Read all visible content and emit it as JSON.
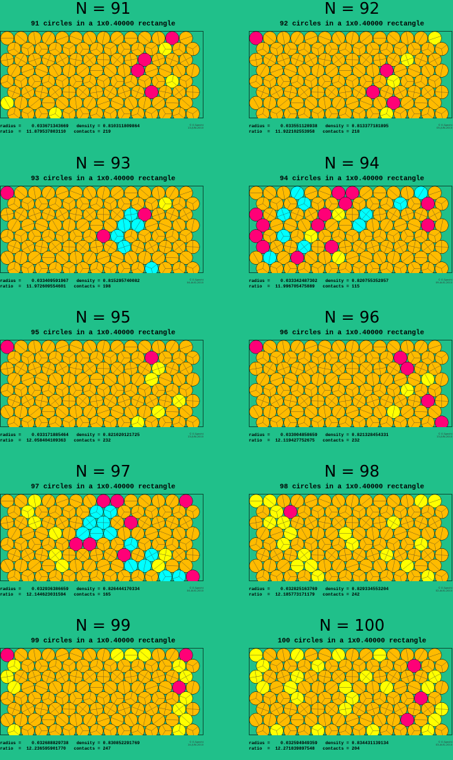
{
  "colors": {
    "background": "#20c08a",
    "orange": "#ffbb00",
    "yellow": "#ffff00",
    "magenta": "#ff0077",
    "cyan": "#00ffff"
  },
  "panels": [
    {
      "title": "N = 91",
      "subtitle": "91 circles in a 1x0.40000 rectangle",
      "radius_line": "radius =    0.033671343669   density = 0.810311809864",
      "ratio_line": "ratio  =  11.879537803110   contacts = 219",
      "copyright": "© E.Specht",
      "date": "13-JUN-2010"
    },
    {
      "title": "N = 92",
      "subtitle": "92 circles in a 1x0.40000 rectangle",
      "radius_line": "radius =    0.033551128938   density = 0.813377181895",
      "ratio_line": "ratio  =  11.922102553958   contacts = 218",
      "copyright": "© E.Specht",
      "date": "05-JUN-2010"
    },
    {
      "title": "N = 93",
      "subtitle": "93 circles in a 1x0.40000 rectangle",
      "radius_line": "radius =    0.033409591967   density = 0.815295740082",
      "ratio_line": "ratio  =  11.972609554601   contacts = 198",
      "copyright": "© E.Specht",
      "date": "04-AUG-2010"
    },
    {
      "title": "N = 94",
      "subtitle": "94 circles in a 1x0.40000 rectangle",
      "radius_line": "radius =    0.033342487302   density = 0.820755352957",
      "ratio_line": "ratio  =  11.996705475889   contacts = 115",
      "copyright": "© E.Specht",
      "date": "09-AUG-2010"
    },
    {
      "title": "N = 95",
      "subtitle": "95 circles in a 1x0.40000 rectangle",
      "radius_line": "radius =    0.033171885464   density = 0.821020121725",
      "ratio_line": "ratio  =  12.058404109363   contacts = 232",
      "copyright": "© E.Specht",
      "date": "13-JUN-2010"
    },
    {
      "title": "N = 96",
      "subtitle": "96 circles in a 1x0.40000 rectangle",
      "radius_line": "radius =    0.033004858659   density = 0.821328454331",
      "ratio_line": "ratio  =  12.119427752675   contacts = 232",
      "copyright": "© E.Specht",
      "date": "13-JUN-2010"
    },
    {
      "title": "N = 97",
      "subtitle": "97 circles in a 1x0.40000 rectangle",
      "radius_line": "radius =    0.032936386659   density = 0.826444170334",
      "ratio_line": "ratio  =  12.144623031594   contacts = 165",
      "copyright": "© E.Specht",
      "date": "04-AUG-2010"
    },
    {
      "title": "N = 98",
      "subtitle": "98 circles in a 1x0.40000 rectangle",
      "radius_line": "radius =    0.032825163769   density = 0.829334553204",
      "ratio_line": "ratio  =  12.185773171179   contacts = 242",
      "copyright": "© E.Specht",
      "date": "02-AUG-2010"
    },
    {
      "title": "N = 99",
      "subtitle": "99 circles in a 1x0.40000 rectangle",
      "radius_line": "radius =    0.032688829738   density = 0.830852291769",
      "ratio_line": "ratio  =  12.236595901770   contacts = 247",
      "copyright": "© E.Specht",
      "date": "14-JUN-2010"
    },
    {
      "title": "N = 100",
      "subtitle": "100 circles in a 1x0.40000 rectangle",
      "radius_line": "radius =    0.032594949359   density = 0.834431139134",
      "ratio_line": "ratio  =  12.271839897548   contacts = 204",
      "copyright": "© E.Specht",
      "date": "03-AUG-2010"
    }
  ]
}
